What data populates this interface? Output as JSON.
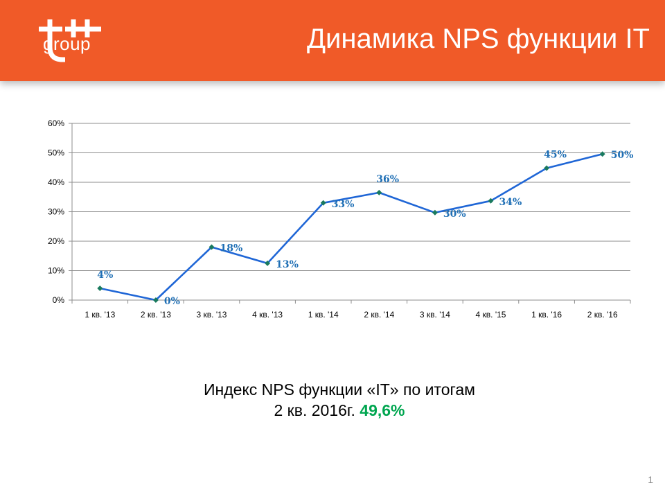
{
  "header": {
    "logo_text": "group",
    "title": "Динамика NPS функции IT",
    "background_color": "#f05a28"
  },
  "chart_data": {
    "type": "line",
    "categories": [
      "1 кв.  '13",
      "2 кв. '13",
      "3 кв. '13",
      "4 кв. '13",
      "1 кв. '14",
      "2 кв. '14",
      "3 кв. '14",
      "4 кв. '15",
      "1 кв. '16",
      "2 кв. '16"
    ],
    "series": [
      {
        "values": [
          4,
          0,
          18,
          12.5,
          33,
          36.5,
          29.7,
          33.7,
          44.8,
          49.6
        ],
        "data_labels": [
          "4%",
          "0%",
          "18%",
          "13%",
          "33%",
          "36%",
          "30%",
          "34%",
          "45%",
          "50%"
        ],
        "color": "#1f66d6",
        "marker_color": "#1a7a5e"
      }
    ],
    "y_ticks": [
      "0%",
      "10%",
      "20%",
      "30%",
      "40%",
      "50%",
      "60%"
    ],
    "ylim": [
      0,
      60
    ],
    "grid": true,
    "legend": "none"
  },
  "summary": {
    "line1": "Индекс NPS функции «IT» по итогам",
    "line2_prefix": "2 кв. 2016г.",
    "value": "49,6%",
    "value_color": "#00a650"
  },
  "page_number": "1"
}
